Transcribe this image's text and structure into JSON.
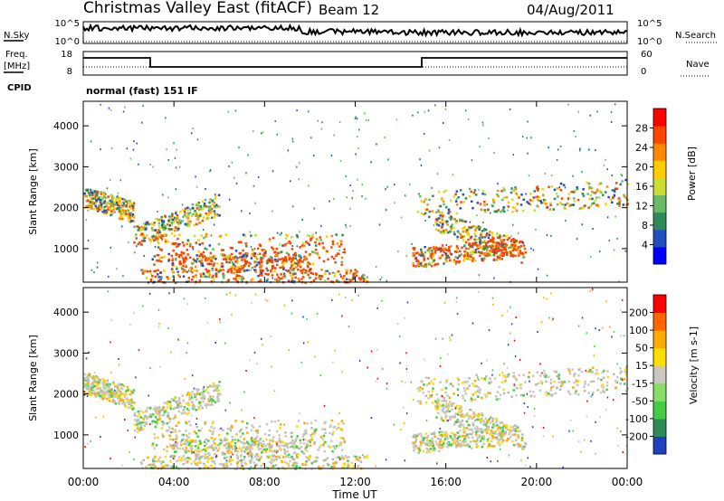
{
  "header": {
    "station": "Christmas Valley East (fitACF)",
    "beam": "Beam 12",
    "date": "04/Aug/2011"
  },
  "noise_panel": {
    "left_label": "N.Sky",
    "right_label": "N.Search",
    "left_ticks": [
      "10^5",
      "10^0"
    ],
    "right_ticks": [
      "10^5",
      "10^0"
    ]
  },
  "freq_panel": {
    "left_label_1": "Freq.",
    "left_label_2": "[MHz]",
    "right_label": "Nave",
    "left_ticks": [
      "18",
      "8"
    ],
    "right_ticks": [
      "60",
      "0"
    ]
  },
  "cpid": {
    "label": "CPID",
    "value": "normal (fast) 151 IF"
  },
  "chart_data": [
    {
      "type": "heatmap",
      "name": "power",
      "ylabel": "Slant Range [km]",
      "yticks": [
        1000,
        2000,
        3000,
        4000
      ],
      "ylim": [
        180,
        4600
      ],
      "colorbar_label": "Power [dB]",
      "colorbar_ticks": [
        "28",
        "24",
        "20",
        "16",
        "12",
        "8",
        "4"
      ],
      "colorbar_colors": [
        "#0000ff",
        "#2050c0",
        "#2e8b57",
        "#66bb66",
        "#ccdd33",
        "#ffcc00",
        "#ff8800",
        "#ff4400",
        "#ff0000"
      ]
    },
    {
      "type": "heatmap",
      "name": "velocity",
      "ylabel": "Slant Range [km]",
      "yticks": [
        1000,
        2000,
        3000,
        4000
      ],
      "ylim": [
        180,
        4600
      ],
      "colorbar_label": "Velocity [m s-1]",
      "colorbar_ticks": [
        "200",
        "100",
        "50",
        "15",
        "-15",
        "-50",
        "-100",
        "-200"
      ],
      "colorbar_colors": [
        "#2040c0",
        "#2e8b57",
        "#44cc44",
        "#88dd66",
        "#c8c8c0",
        "#ffdd00",
        "#ffaa00",
        "#ff6600",
        "#ff0000"
      ]
    }
  ],
  "time_axis": {
    "xlabel": "Time UT",
    "ticks": [
      "00:00",
      "04:00",
      "08:00",
      "12:00",
      "16:00",
      "20:00",
      "00:00"
    ]
  }
}
